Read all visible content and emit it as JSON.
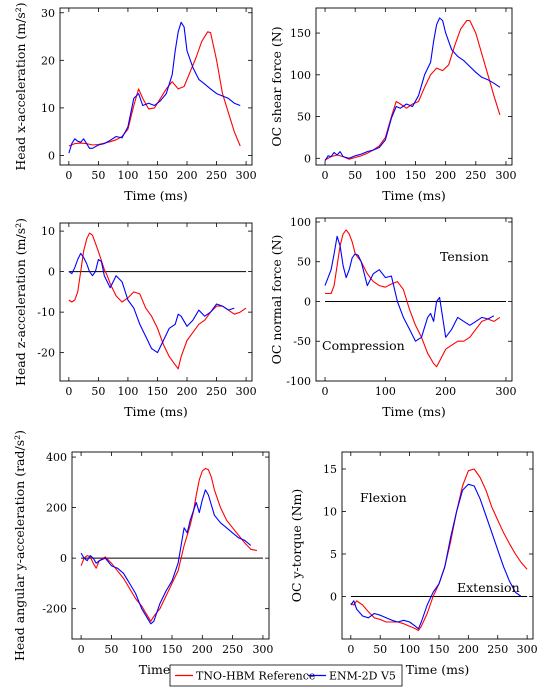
{
  "legend": {
    "entries": [
      {
        "label": "TNO-HBM Reference",
        "color": "#ff0000"
      },
      {
        "label": "ENM-2D V5",
        "color": "#0000ff"
      }
    ]
  },
  "chart_data": [
    {
      "type": "line",
      "xlabel": "Time (ms)",
      "ylabel": "Head x-acceleration (m/s²)",
      "xlim": [
        -15,
        310
      ],
      "ylim": [
        -2,
        31
      ],
      "xticks": [
        0,
        50,
        100,
        150,
        200,
        250,
        300
      ],
      "yticks": [
        0,
        10,
        20,
        30
      ],
      "grid": false,
      "series": [
        {
          "name": "TNO-HBM Reference",
          "color": "#ff0000",
          "x": [
            0,
            10,
            20,
            30,
            40,
            50,
            60,
            70,
            80,
            90,
            100,
            110,
            118,
            125,
            135,
            145,
            155,
            165,
            175,
            185,
            195,
            205,
            215,
            225,
            235,
            240,
            250,
            260,
            270,
            280,
            290
          ],
          "y": [
            2,
            2.5,
            2.6,
            2.5,
            2.2,
            2.3,
            2.6,
            2.9,
            3.3,
            4.0,
            5.5,
            10.5,
            14.0,
            12.0,
            9.8,
            10.0,
            12.0,
            14.0,
            15.5,
            14.0,
            14.5,
            17.5,
            20.5,
            24.0,
            26.0,
            25.8,
            20.0,
            13.0,
            9.0,
            5.0,
            2.0
          ]
        },
        {
          "name": "ENM-2D V5",
          "color": "#0000ff",
          "x": [
            0,
            5,
            10,
            15,
            20,
            25,
            30,
            35,
            40,
            50,
            60,
            70,
            80,
            90,
            100,
            110,
            118,
            125,
            135,
            145,
            155,
            165,
            175,
            180,
            185,
            190,
            195,
            200,
            210,
            220,
            230,
            240,
            250,
            260,
            270,
            280,
            290
          ],
          "y": [
            0.5,
            2.5,
            3.5,
            3.0,
            2.8,
            3.5,
            2.5,
            1.5,
            1.5,
            2.2,
            2.5,
            3.2,
            4.0,
            3.7,
            6.0,
            12.0,
            13.0,
            10.5,
            11.0,
            10.5,
            11.5,
            13.0,
            17.0,
            22.0,
            26.0,
            28.0,
            27.0,
            22.0,
            18.5,
            16.0,
            15.0,
            14.0,
            13.0,
            12.5,
            12.0,
            11.0,
            10.5
          ]
        }
      ]
    },
    {
      "type": "line",
      "xlabel": "Time (ms)",
      "ylabel": "OC shear force (N)",
      "xlim": [
        -15,
        310
      ],
      "ylim": [
        -8,
        180
      ],
      "xticks": [
        0,
        50,
        100,
        150,
        200,
        250,
        300
      ],
      "yticks": [
        0,
        50,
        100,
        150
      ],
      "grid": false,
      "series": [
        {
          "name": "TNO-HBM Reference",
          "color": "#ff0000",
          "x": [
            0,
            10,
            20,
            30,
            40,
            50,
            60,
            70,
            80,
            90,
            100,
            110,
            118,
            125,
            135,
            145,
            155,
            165,
            175,
            185,
            195,
            205,
            215,
            225,
            235,
            240,
            250,
            260,
            270,
            280,
            290
          ],
          "y": [
            -2,
            2,
            4,
            2,
            -1,
            1,
            3,
            6,
            10,
            15,
            25,
            50,
            68,
            65,
            60,
            65,
            68,
            85,
            100,
            108,
            105,
            112,
            135,
            155,
            165,
            165,
            150,
            125,
            100,
            75,
            52
          ]
        },
        {
          "name": "ENM-2D V5",
          "color": "#0000ff",
          "x": [
            0,
            5,
            10,
            15,
            20,
            25,
            30,
            40,
            50,
            60,
            70,
            80,
            90,
            100,
            110,
            118,
            125,
            135,
            145,
            155,
            165,
            175,
            180,
            185,
            190,
            195,
            200,
            210,
            220,
            230,
            240,
            250,
            260,
            270,
            280,
            290
          ],
          "y": [
            -3,
            3,
            2,
            7,
            4,
            8,
            2,
            0,
            3,
            5,
            8,
            10,
            13,
            22,
            48,
            62,
            60,
            65,
            62,
            75,
            100,
            115,
            140,
            160,
            168,
            165,
            150,
            130,
            122,
            117,
            110,
            103,
            97,
            94,
            90,
            85
          ]
        }
      ]
    },
    {
      "type": "line",
      "xlabel": "Time (ms)",
      "ylabel": "Head z-acceleration (m/s²)",
      "xlim": [
        -15,
        310
      ],
      "ylim": [
        -27,
        12
      ],
      "xticks": [
        0,
        50,
        100,
        150,
        200,
        250,
        300
      ],
      "yticks": [
        -20,
        -10,
        0,
        10
      ],
      "grid": false,
      "series": [
        {
          "name": "TNO-HBM Reference",
          "color": "#ff0000",
          "x": [
            0,
            5,
            10,
            15,
            20,
            25,
            30,
            35,
            40,
            50,
            60,
            65,
            70,
            80,
            90,
            100,
            110,
            120,
            130,
            140,
            150,
            160,
            170,
            180,
            185,
            190,
            200,
            210,
            220,
            230,
            240,
            250,
            260,
            270,
            280,
            290,
            300
          ],
          "y": [
            -7,
            -7.5,
            -7,
            -5,
            0,
            5,
            8,
            9.5,
            9,
            5,
            0.5,
            -1,
            -3,
            -6,
            -7.5,
            -6.5,
            -5,
            -5.5,
            -9,
            -11,
            -14,
            -18,
            -21,
            -23,
            -24,
            -21,
            -17,
            -15,
            -13,
            -12,
            -10,
            -8.5,
            -8.5,
            -9.5,
            -10.5,
            -10,
            -9
          ]
        },
        {
          "name": "ENM-2D V5",
          "color": "#0000ff",
          "x": [
            0,
            5,
            10,
            15,
            20,
            25,
            30,
            35,
            40,
            45,
            50,
            55,
            60,
            70,
            80,
            90,
            100,
            110,
            120,
            130,
            140,
            150,
            160,
            170,
            180,
            185,
            190,
            200,
            210,
            220,
            230,
            240,
            250,
            260,
            270,
            280
          ],
          "y": [
            0,
            -0.5,
            1,
            3,
            4.5,
            3.5,
            2,
            0,
            -1,
            0,
            3,
            2.5,
            -1,
            -4,
            -1,
            -2.5,
            -7,
            -9,
            -13,
            -16,
            -19,
            -20,
            -17,
            -14,
            -13,
            -10.5,
            -11,
            -13.5,
            -12,
            -9.5,
            -11,
            -10,
            -8,
            -8.5,
            -9.5,
            -9
          ]
        }
      ]
    },
    {
      "type": "line",
      "xlabel": "Time (ms)",
      "ylabel": "OC normal force (N)",
      "xlim": [
        -15,
        310
      ],
      "ylim": [
        -100,
        105
      ],
      "xticks": [
        0,
        100,
        200,
        300
      ],
      "yticks": [
        -100,
        -50,
        0,
        50,
        100
      ],
      "grid": false,
      "annotations": [
        "Tension",
        "Compression"
      ],
      "series": [
        {
          "name": "TNO-HBM Reference",
          "color": "#ff0000",
          "x": [
            0,
            5,
            10,
            15,
            20,
            25,
            30,
            35,
            40,
            45,
            50,
            60,
            70,
            80,
            90,
            100,
            110,
            120,
            130,
            140,
            150,
            160,
            170,
            180,
            185,
            190,
            200,
            210,
            220,
            230,
            240,
            250,
            260,
            270,
            280,
            290
          ],
          "y": [
            10,
            10,
            10,
            20,
            45,
            70,
            85,
            90,
            85,
            75,
            60,
            50,
            35,
            25,
            20,
            18,
            22,
            25,
            15,
            -10,
            -30,
            -45,
            -65,
            -78,
            -82,
            -75,
            -60,
            -55,
            -50,
            -50,
            -45,
            -35,
            -25,
            -22,
            -25,
            -20
          ]
        },
        {
          "name": "ENM-2D V5",
          "color": "#0000ff",
          "x": [
            0,
            5,
            10,
            15,
            20,
            25,
            30,
            35,
            40,
            45,
            50,
            55,
            60,
            70,
            80,
            90,
            100,
            110,
            120,
            130,
            140,
            150,
            160,
            170,
            175,
            180,
            185,
            190,
            200,
            210,
            220,
            230,
            240,
            250,
            260,
            270,
            280
          ],
          "y": [
            20,
            30,
            40,
            60,
            82,
            70,
            45,
            30,
            40,
            55,
            60,
            58,
            50,
            20,
            35,
            40,
            30,
            32,
            0,
            -20,
            -35,
            -50,
            -45,
            -20,
            -15,
            -25,
            0,
            5,
            -45,
            -35,
            -20,
            -25,
            -30,
            -25,
            -20,
            -22,
            -18
          ]
        }
      ]
    },
    {
      "type": "line",
      "xlabel": "Time (ms)",
      "ylabel": "Head angular y-acceleration (rad/s²)",
      "xlim": [
        -15,
        310
      ],
      "ylim": [
        -320,
        420
      ],
      "xticks": [
        0,
        50,
        100,
        150,
        200,
        250,
        300
      ],
      "yticks": [
        -200,
        0,
        200,
        400
      ],
      "grid": false,
      "series": [
        {
          "name": "TNO-HBM Reference",
          "color": "#ff0000",
          "x": [
            0,
            5,
            10,
            15,
            20,
            25,
            30,
            40,
            50,
            60,
            70,
            80,
            90,
            100,
            110,
            115,
            120,
            130,
            140,
            150,
            160,
            170,
            180,
            185,
            190,
            195,
            200,
            205,
            210,
            215,
            220,
            230,
            240,
            250,
            260,
            270,
            280,
            290
          ],
          "y": [
            -30,
            0,
            10,
            5,
            -20,
            -40,
            -10,
            5,
            -20,
            -50,
            -80,
            -120,
            -160,
            -190,
            -230,
            -250,
            -230,
            -200,
            -150,
            -100,
            -50,
            50,
            130,
            180,
            250,
            310,
            345,
            355,
            350,
            320,
            270,
            200,
            150,
            120,
            90,
            60,
            35,
            30
          ]
        },
        {
          "name": "ENM-2D V5",
          "color": "#0000ff",
          "x": [
            0,
            5,
            10,
            15,
            20,
            25,
            30,
            40,
            50,
            60,
            70,
            80,
            90,
            100,
            110,
            115,
            120,
            130,
            140,
            150,
            160,
            170,
            175,
            180,
            190,
            195,
            200,
            205,
            210,
            215,
            220,
            230,
            240,
            250,
            260,
            270,
            280
          ],
          "y": [
            20,
            0,
            -10,
            10,
            0,
            -20,
            -10,
            0,
            -30,
            -40,
            -60,
            -100,
            -140,
            -200,
            -240,
            -260,
            -250,
            -180,
            -130,
            -90,
            -20,
            120,
            100,
            150,
            220,
            180,
            230,
            270,
            250,
            210,
            170,
            140,
            120,
            100,
            80,
            70,
            50
          ]
        }
      ]
    },
    {
      "type": "line",
      "xlabel": "Time (ms)",
      "ylabel": "OC y-torque (Nm)",
      "xlim": [
        -15,
        310
      ],
      "ylim": [
        -5,
        17
      ],
      "xticks": [
        0,
        50,
        100,
        150,
        200,
        250,
        300
      ],
      "yticks": [
        0,
        5,
        10,
        15
      ],
      "grid": false,
      "annotations": [
        "Flexion",
        "Extension"
      ],
      "series": [
        {
          "name": "TNO-HBM Reference",
          "color": "#ff0000",
          "x": [
            0,
            5,
            10,
            20,
            30,
            40,
            50,
            60,
            70,
            80,
            90,
            100,
            110,
            115,
            120,
            130,
            140,
            150,
            160,
            170,
            180,
            190,
            200,
            210,
            220,
            230,
            240,
            250,
            260,
            270,
            280,
            290,
            300
          ],
          "y": [
            -0.8,
            -1.0,
            -0.5,
            -1.0,
            -1.8,
            -2.5,
            -2.7,
            -3.0,
            -3.0,
            -3.0,
            -3.2,
            -3.5,
            -3.8,
            -4.0,
            -3.5,
            -2.0,
            0,
            1.5,
            3.5,
            6.5,
            10,
            13,
            14.8,
            15,
            14,
            12.5,
            10.5,
            9,
            7.5,
            6.2,
            5,
            4,
            3.2
          ]
        },
        {
          "name": "ENM-2D V5",
          "color": "#0000ff",
          "x": [
            0,
            5,
            10,
            20,
            30,
            40,
            50,
            60,
            70,
            80,
            90,
            100,
            110,
            115,
            120,
            130,
            140,
            150,
            160,
            170,
            180,
            190,
            200,
            210,
            220,
            230,
            240,
            250,
            260,
            270,
            280,
            290
          ],
          "y": [
            -1.0,
            -0.5,
            -1.5,
            -2.3,
            -2.5,
            -2.0,
            -2.2,
            -2.5,
            -2.8,
            -3.0,
            -2.8,
            -3.0,
            -3.5,
            -3.8,
            -3.0,
            -1.0,
            0.5,
            1.5,
            3.5,
            7,
            10,
            12.5,
            13.2,
            13,
            11.5,
            9.5,
            7.5,
            5.5,
            3.5,
            1.8,
            0.5,
            0
          ]
        }
      ]
    }
  ]
}
